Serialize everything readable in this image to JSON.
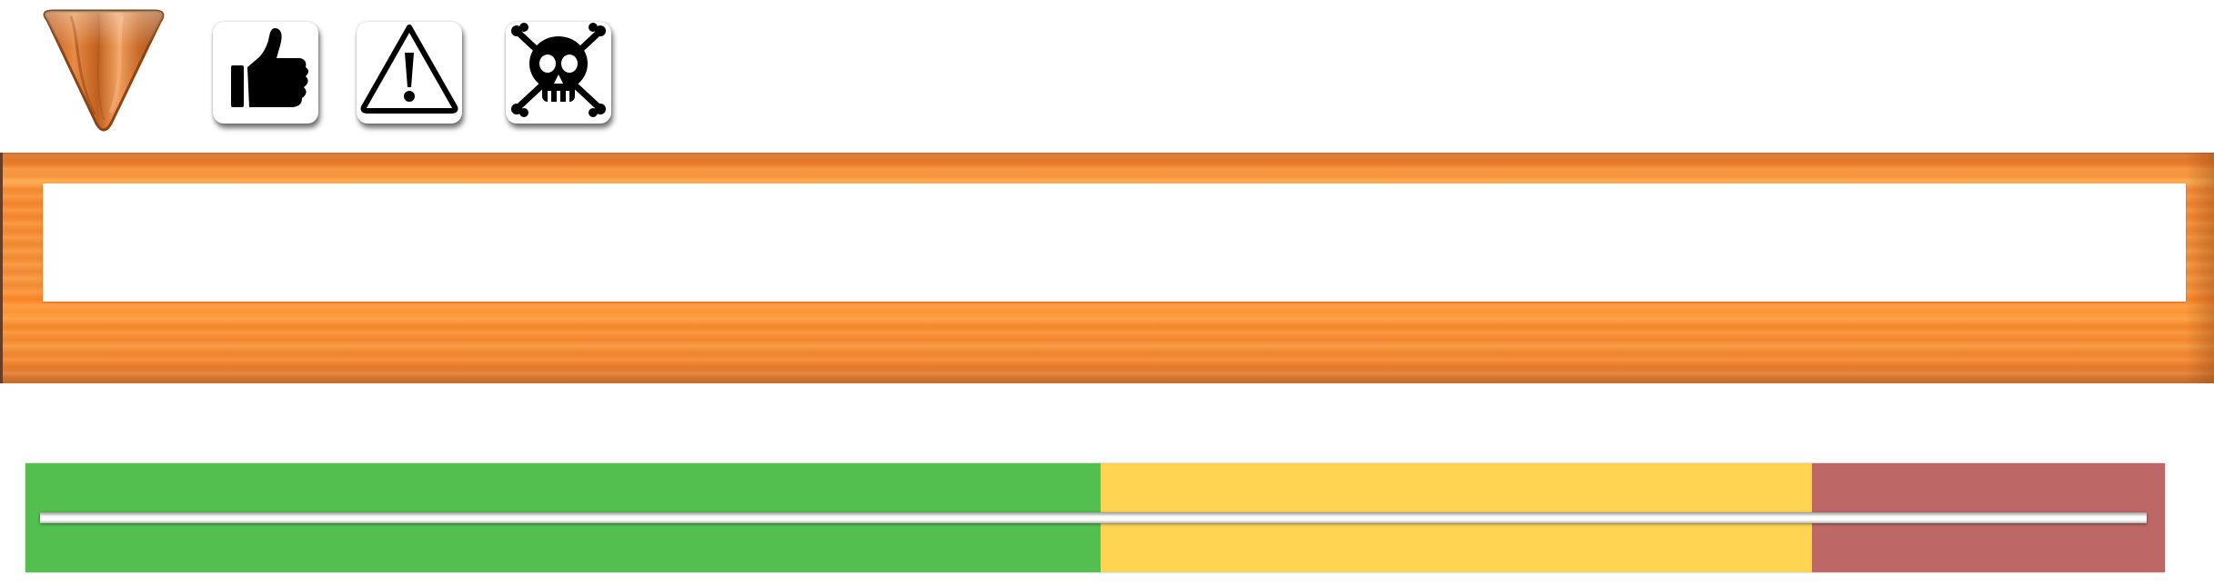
{
  "toolbar": {
    "icons": [
      "wood-triangle-marker-icon",
      "thumbs-up-icon",
      "warning-icon",
      "skull-crossbones-icon"
    ]
  },
  "wood_panel": {
    "colors": {
      "frame": "#f7923a",
      "field": "#ffffff"
    },
    "field_text": ""
  },
  "risk_bar": {
    "segments": [
      {
        "level": "safe",
        "color": "#52bf4f",
        "fraction": 0.5
      },
      {
        "level": "caution",
        "color": "#ffd452",
        "fraction": 0.333
      },
      {
        "level": "danger",
        "color": "#bd6767",
        "fraction": 0.167
      }
    ]
  }
}
